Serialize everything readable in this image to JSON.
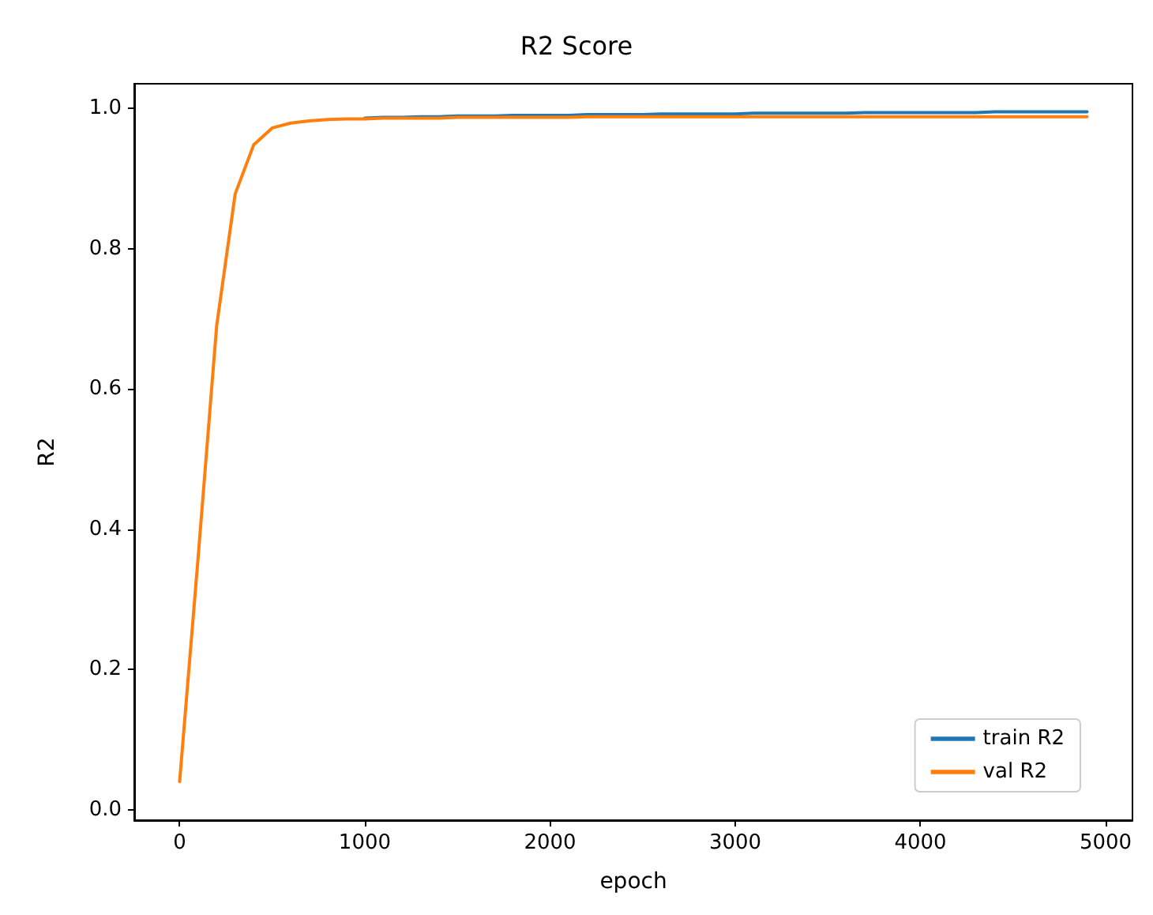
{
  "chart_data": {
    "type": "line",
    "title": "R2 Score",
    "xlabel": "epoch",
    "ylabel": "R2",
    "x": [
      0,
      100,
      200,
      300,
      400,
      500,
      600,
      700,
      800,
      900,
      1000,
      1100,
      1200,
      1300,
      1400,
      1500,
      1600,
      1700,
      1800,
      1900,
      2000,
      2100,
      2200,
      2300,
      2400,
      2500,
      2600,
      2700,
      2800,
      2900,
      3000,
      3100,
      3200,
      3300,
      3400,
      3500,
      3600,
      3700,
      3800,
      3900,
      4000,
      4100,
      4200,
      4300,
      4400,
      4500,
      4600,
      4700,
      4800,
      4900
    ],
    "series": [
      {
        "name": "train R2",
        "color": "#1f77b4",
        "values": [
          null,
          null,
          null,
          null,
          null,
          null,
          null,
          null,
          null,
          null,
          0.986,
          0.987,
          0.987,
          0.988,
          0.988,
          0.989,
          0.989,
          0.989,
          0.99,
          0.99,
          0.99,
          0.99,
          0.991,
          0.991,
          0.991,
          0.991,
          0.992,
          0.992,
          0.992,
          0.992,
          0.992,
          0.993,
          0.993,
          0.993,
          0.993,
          0.993,
          0.993,
          0.994,
          0.994,
          0.994,
          0.994,
          0.994,
          0.994,
          0.994,
          0.995,
          0.995,
          0.995,
          0.995,
          0.995,
          0.995
        ]
      },
      {
        "name": "val R2",
        "color": "#ff7f0e",
        "values": [
          0.04,
          0.36,
          0.69,
          0.878,
          0.948,
          0.972,
          0.979,
          0.982,
          0.984,
          0.985,
          0.985,
          0.986,
          0.986,
          0.986,
          0.986,
          0.987,
          0.987,
          0.987,
          0.987,
          0.987,
          0.987,
          0.987,
          0.988,
          0.988,
          0.988,
          0.988,
          0.988,
          0.988,
          0.988,
          0.988,
          0.988,
          0.988,
          0.988,
          0.988,
          0.988,
          0.988,
          0.988,
          0.988,
          0.988,
          0.988,
          0.988,
          0.988,
          0.988,
          0.988,
          0.988,
          0.988,
          0.988,
          0.988,
          0.988,
          0.988
        ]
      }
    ],
    "xlim": [
      -245,
      5145
    ],
    "xticks": [
      0,
      1000,
      2000,
      3000,
      4000,
      5000
    ],
    "ylim": [
      -0.015,
      1.035
    ],
    "yticks": [
      {
        "value": 0,
        "label": "0.0"
      },
      0.2,
      0.4,
      0.6,
      0.8,
      {
        "value": 1,
        "label": "1.0"
      }
    ],
    "legend": "bottom right",
    "grid": false,
    "marker": "none",
    "line_style": "solid"
  }
}
